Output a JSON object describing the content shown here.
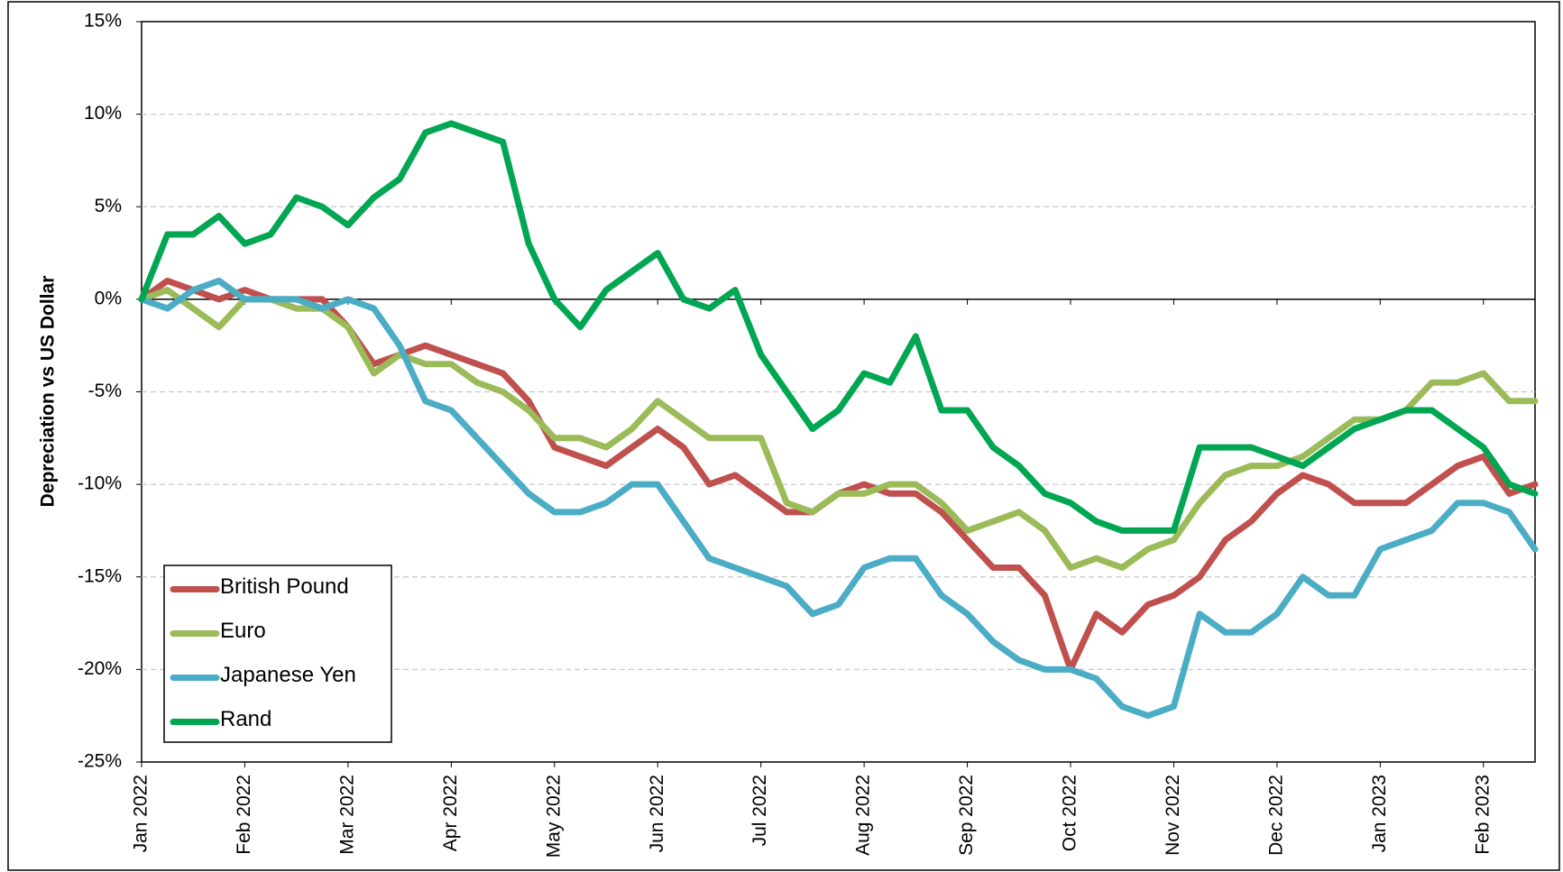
{
  "chart_data": {
    "type": "line",
    "y_label": "Depreciation vs US Dollar",
    "categories": [
      "Jan 2022",
      null,
      null,
      null,
      "Feb 2022",
      null,
      null,
      null,
      "Mar 2022",
      null,
      null,
      null,
      "Apr 2022",
      null,
      null,
      null,
      "May 2022",
      null,
      null,
      null,
      "Jun 2022",
      null,
      null,
      null,
      "Jul 2022",
      null,
      null,
      null,
      "Aug 2022",
      null,
      null,
      null,
      "Sep 2022",
      null,
      null,
      null,
      "Oct 2022",
      null,
      null,
      null,
      "Nov 2022",
      null,
      null,
      null,
      "Dec 2022",
      null,
      null,
      null,
      "Jan 2023",
      null,
      null,
      null,
      "Feb 2023",
      null,
      null
    ],
    "series": [
      {
        "name": "British Pound",
        "color": "#c0504d",
        "values": [
          0,
          1,
          0.5,
          0,
          0.5,
          0,
          0,
          0,
          -1.5,
          -3.5,
          -3,
          -2.5,
          -3,
          -3.5,
          -4,
          -5.5,
          -8,
          -8.5,
          -9,
          -8,
          -7,
          -8,
          -10,
          -9.5,
          -10.5,
          -11.5,
          -11.5,
          -10.5,
          -10,
          -10.5,
          -10.5,
          -11.5,
          -13,
          -14.5,
          -14.5,
          -16,
          -20,
          -17,
          -18,
          -16.5,
          -16,
          -15,
          -13,
          -12,
          -10.5,
          -9.5,
          -10,
          -11,
          -11,
          -11,
          -10,
          -9,
          -8.5,
          -10.5,
          -10
        ]
      },
      {
        "name": "Euro",
        "color": "#9bbb59",
        "values": [
          0,
          0.5,
          -0.5,
          -1.5,
          0,
          0,
          -0.5,
          -0.5,
          -1.5,
          -4,
          -3,
          -3.5,
          -3.5,
          -4.5,
          -5,
          -6,
          -7.5,
          -7.5,
          -8,
          -7,
          -5.5,
          -6.5,
          -7.5,
          -7.5,
          -7.5,
          -11,
          -11.5,
          -10.5,
          -10.5,
          -10,
          -10,
          -11,
          -12.5,
          -12,
          -11.5,
          -12.5,
          -14.5,
          -14,
          -14.5,
          -13.5,
          -13,
          -11,
          -9.5,
          -9,
          -9,
          -8.5,
          -7.5,
          -6.5,
          -6.5,
          -6,
          -4.5,
          -4.5,
          -4,
          -5.5,
          -5.5
        ]
      },
      {
        "name": "Japanese Yen",
        "color": "#4bacc6",
        "values": [
          0,
          -0.5,
          0.5,
          1,
          0,
          0,
          0,
          -0.5,
          0,
          -0.5,
          -2.5,
          -5.5,
          -6,
          -7.5,
          -9,
          -10.5,
          -11.5,
          -11.5,
          -11,
          -10,
          -10,
          -12,
          -14,
          -14.5,
          -15,
          -15.5,
          -17,
          -16.5,
          -14.5,
          -14,
          -14,
          -16,
          -17,
          -18.5,
          -19.5,
          -20,
          -20,
          -20.5,
          -22,
          -22.5,
          -22,
          -17,
          -18,
          -18,
          -17,
          -15,
          -16,
          -16,
          -13.5,
          -13,
          -12.5,
          -11,
          -11,
          -11.5,
          -13.5
        ]
      },
      {
        "name": "Rand",
        "color": "#00a651",
        "values": [
          0,
          3.5,
          3.5,
          4.5,
          3,
          3.5,
          5.5,
          5,
          4,
          5.5,
          6.5,
          9,
          9.5,
          9,
          8.5,
          3,
          0,
          -1.5,
          0.5,
          1.5,
          2.5,
          0,
          -0.5,
          0.5,
          -3,
          -5,
          -7,
          -6,
          -4,
          -4.5,
          -2,
          -6,
          -6,
          -8,
          -9,
          -10.5,
          -11,
          -12,
          -12.5,
          -12.5,
          -12.5,
          -8,
          -8,
          -8,
          -8.5,
          -9,
          -8,
          -7,
          -6.5,
          -6,
          -6,
          -7,
          -8,
          -10,
          -10.5
        ]
      }
    ],
    "ylim": [
      -25,
      15
    ],
    "yticks": [
      {
        "value": -25,
        "label": "-25%"
      },
      {
        "value": -20,
        "label": "-20%"
      },
      {
        "value": -15,
        "label": "-15%"
      },
      {
        "value": -10,
        "label": "-10%"
      },
      {
        "value": -5,
        "label": "-5%"
      },
      {
        "value": 0,
        "label": "0%"
      },
      {
        "value": 5,
        "label": "5%"
      },
      {
        "value": 10,
        "label": "10%"
      },
      {
        "value": 15,
        "label": "15%"
      }
    ],
    "grid": true,
    "legend": "bottom-left"
  }
}
